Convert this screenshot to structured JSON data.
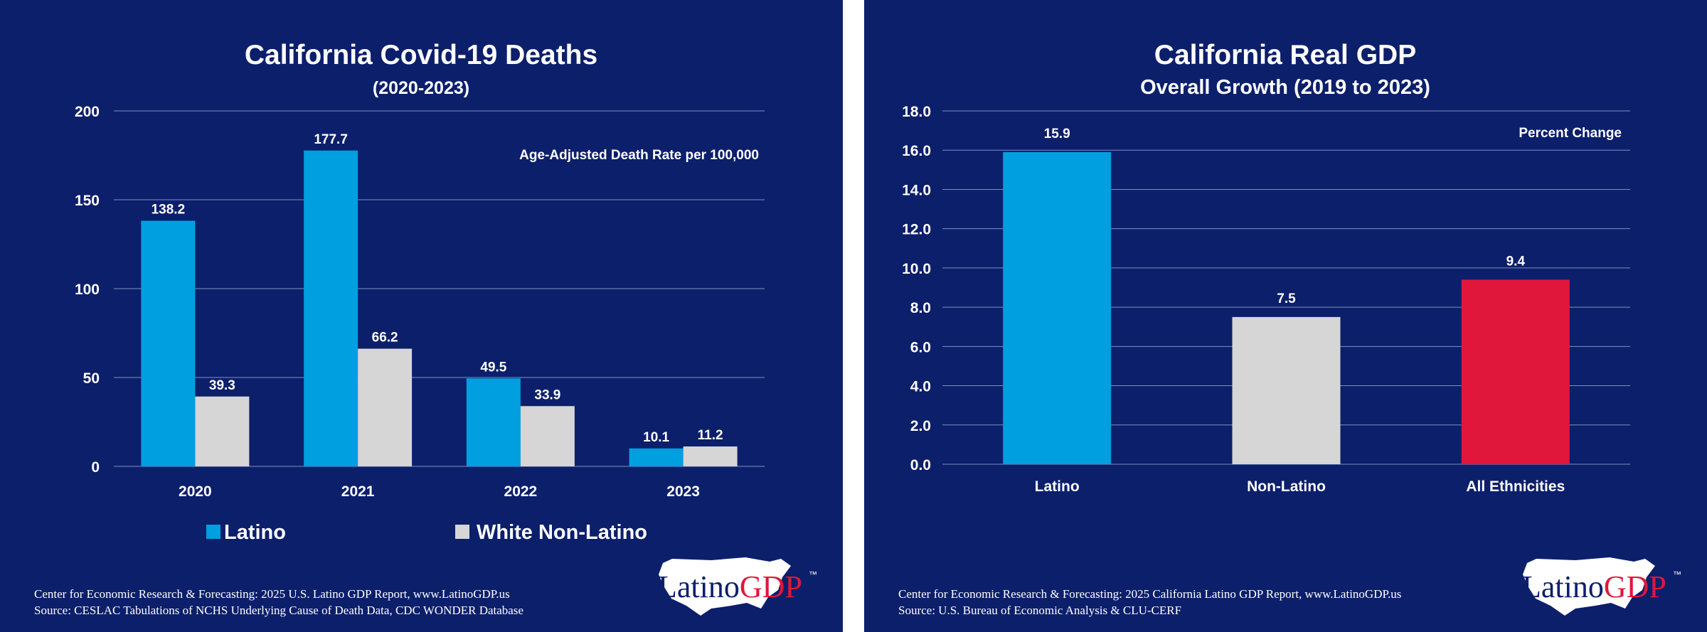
{
  "chart_data": [
    {
      "type": "bar",
      "title": "California Covid-19 Deaths",
      "subtitle": "(2020-2023)",
      "annotation": "Age-Adjusted Death Rate per 100,000",
      "categories": [
        "2020",
        "2021",
        "2022",
        "2023"
      ],
      "series": [
        {
          "name": "Latino",
          "values": [
            138.2,
            177.7,
            49.5,
            10.1
          ],
          "color": "#009fe0"
        },
        {
          "name": "White Non-Latino",
          "values": [
            39.3,
            66.2,
            33.9,
            11.2
          ],
          "color": "#d6d6d6"
        }
      ],
      "value_labels": [
        [
          "138.2",
          "177.7",
          "49.5",
          "10.1"
        ],
        [
          "39.3",
          "66.2",
          "33.9",
          "11.2"
        ]
      ],
      "yticks": [
        "0",
        "50",
        "100",
        "150",
        "200"
      ],
      "ylim": [
        0,
        200
      ],
      "grid": true,
      "legend": "bottom",
      "source_lines": [
        "Center for Economic Research & Forecasting: 2025 U.S. Latino GDP Report, www.LatinoGDP.us",
        "Source: CESLAC Tabulations of NCHS Underlying Cause of Death Data, CDC WONDER Database"
      ],
      "logo": {
        "text1": "Latino",
        "text2": "GDP",
        "tm": "™"
      }
    },
    {
      "type": "bar",
      "title": "California Real GDP",
      "subtitle": "Overall Growth (2019 to 2023)",
      "annotation": "Percent Change",
      "categories": [
        "Latino",
        "Non-Latino",
        "All Ethnicities"
      ],
      "values": [
        15.9,
        7.5,
        9.4
      ],
      "value_labels": [
        "15.9",
        "7.5",
        "9.4"
      ],
      "colors": [
        "#009fe0",
        "#d6d6d6",
        "#e0173a"
      ],
      "yticks": [
        "0.0",
        "2.0",
        "4.0",
        "6.0",
        "8.0",
        "10.0",
        "12.0",
        "14.0",
        "16.0",
        "18.0"
      ],
      "ylim": [
        0,
        18
      ],
      "grid": true,
      "legend": "none",
      "source_lines": [
        "Center for Economic Research & Forecasting: 2025 California Latino GDP Report, www.LatinoGDP.us",
        "Source: U.S. Bureau of Economic Analysis & CLU-CERF"
      ],
      "logo": {
        "text1": "Latino",
        "text2": "GDP",
        "tm": "™"
      }
    }
  ]
}
